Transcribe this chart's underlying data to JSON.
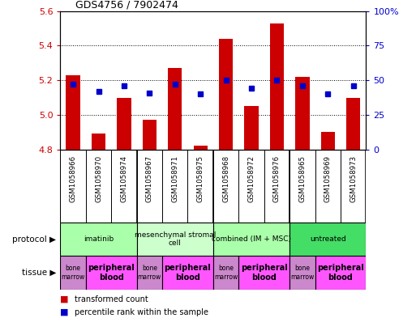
{
  "title": "GDS4756 / 7902474",
  "samples": [
    "GSM1058966",
    "GSM1058970",
    "GSM1058974",
    "GSM1058967",
    "GSM1058971",
    "GSM1058975",
    "GSM1058968",
    "GSM1058972",
    "GSM1058976",
    "GSM1058965",
    "GSM1058969",
    "GSM1058973"
  ],
  "bar_values": [
    5.23,
    4.89,
    5.1,
    4.97,
    5.27,
    4.82,
    5.44,
    5.05,
    5.53,
    5.22,
    4.9,
    5.1
  ],
  "percentile_values": [
    47,
    42,
    46,
    41,
    47,
    40,
    50,
    44,
    50,
    46,
    40,
    46
  ],
  "ylim_left": [
    4.8,
    5.6
  ],
  "ylim_right": [
    0,
    100
  ],
  "yticks_left": [
    4.8,
    5.0,
    5.2,
    5.4,
    5.6
  ],
  "yticks_right": [
    0,
    25,
    50,
    75,
    100
  ],
  "bar_color": "#cc0000",
  "dot_color": "#0000cc",
  "protocols": [
    {
      "label": "imatinib",
      "start": 0,
      "end": 3,
      "color": "#aaffaa"
    },
    {
      "label": "mesenchymal stromal\ncell",
      "start": 3,
      "end": 6,
      "color": "#ccffcc"
    },
    {
      "label": "combined (IM + MSC)",
      "start": 6,
      "end": 9,
      "color": "#aaffaa"
    },
    {
      "label": "untreated",
      "start": 9,
      "end": 12,
      "color": "#44dd66"
    }
  ],
  "tissues": [
    {
      "label": "bone\nmarrow",
      "start": 0,
      "end": 1,
      "color": "#cc88cc"
    },
    {
      "label": "peripheral\nblood",
      "start": 1,
      "end": 3,
      "color": "#ff55ff"
    },
    {
      "label": "bone\nmarrow",
      "start": 3,
      "end": 4,
      "color": "#cc88cc"
    },
    {
      "label": "peripheral\nblood",
      "start": 4,
      "end": 6,
      "color": "#ff55ff"
    },
    {
      "label": "bone\nmarrow",
      "start": 6,
      "end": 7,
      "color": "#cc88cc"
    },
    {
      "label": "peripheral\nblood",
      "start": 7,
      "end": 9,
      "color": "#ff55ff"
    },
    {
      "label": "bone\nmarrow",
      "start": 9,
      "end": 10,
      "color": "#cc88cc"
    },
    {
      "label": "peripheral\nblood",
      "start": 10,
      "end": 12,
      "color": "#ff55ff"
    }
  ],
  "sample_bg_color": "#c8c8c8",
  "bg_color": "#ffffff",
  "protocol_label": "protocol",
  "tissue_label": "tissue"
}
